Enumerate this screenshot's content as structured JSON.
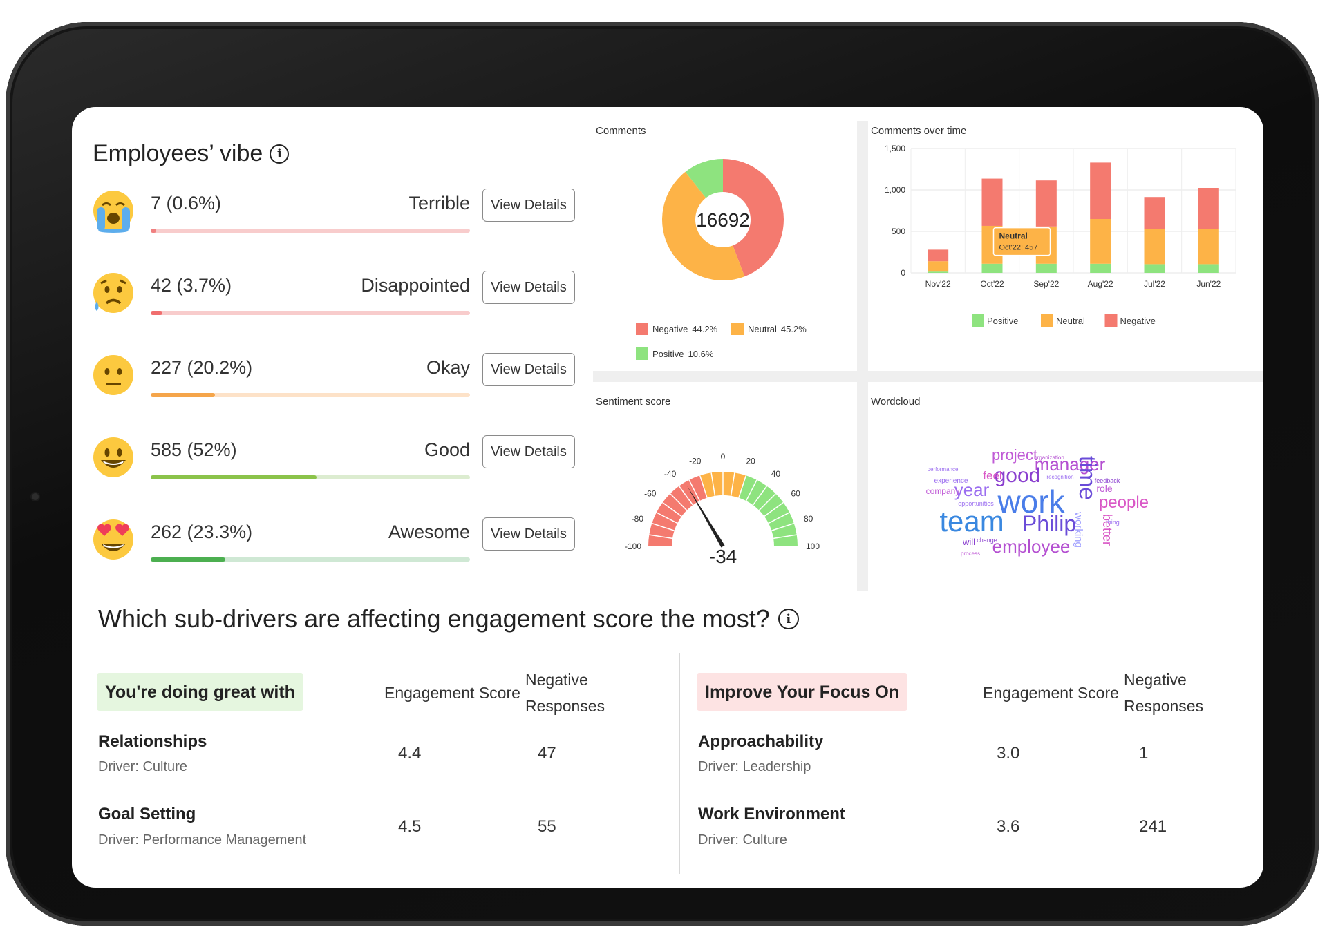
{
  "vibe": {
    "title": "Employees’ vibe",
    "rows": [
      {
        "count": "7 (0.6%)",
        "label": "Terrible",
        "button": "View Details",
        "fraction": 0.006,
        "fill": "#f08080",
        "track": "#f8cccc",
        "emoji": "crying-face"
      },
      {
        "count": "42 (3.7%)",
        "label": "Disappointed",
        "button": "View Details",
        "fraction": 0.037,
        "fill": "#f06e6e",
        "track": "#f8cccc",
        "emoji": "sad-face"
      },
      {
        "count": "227 (20.2%)",
        "label": "Okay",
        "button": "View Details",
        "fraction": 0.202,
        "fill": "#f5a54a",
        "track": "#fde2c8",
        "emoji": "neutral-face"
      },
      {
        "count": "585 (52%)",
        "label": "Good",
        "button": "View Details",
        "fraction": 0.52,
        "fill": "#8bc34a",
        "track": "#dcecd0",
        "emoji": "smiling-face"
      },
      {
        "count": "262 (23.3%)",
        "label": "Awesome",
        "button": "View Details",
        "fraction": 0.233,
        "fill": "#4caf50",
        "track": "#cfe8d4",
        "emoji": "heart-eyes-face"
      }
    ]
  },
  "comments": {
    "title": "Comments",
    "total": "16692",
    "legend": [
      {
        "label": "Negative",
        "value": "44.2%",
        "color": "#f47a6f"
      },
      {
        "label": "Neutral",
        "value": "45.2%",
        "color": "#fdb347"
      },
      {
        "label": "Positive",
        "value": "10.6%",
        "color": "#8ee37f"
      }
    ]
  },
  "chart_data": {
    "type": "bar",
    "title": "Comments over time",
    "categories": [
      "Nov'22",
      "Oct'22",
      "Sep'22",
      "Aug'22",
      "Jul'22",
      "Jun'22"
    ],
    "series": [
      {
        "name": "Positive",
        "color": "#8ee37f",
        "values": [
          15,
          110,
          110,
          110,
          105,
          105
        ]
      },
      {
        "name": "Neutral",
        "color": "#fdb347",
        "values": [
          125,
          457,
          450,
          540,
          420,
          420
        ]
      },
      {
        "name": "Negative",
        "color": "#f47a6f",
        "values": [
          140,
          570,
          555,
          680,
          390,
          500
        ]
      }
    ],
    "yticks": [
      "0",
      "500",
      "1,000",
      "1,500"
    ],
    "ylim": [
      0,
      1500
    ],
    "stacked": true,
    "legend_position": "bottom",
    "tooltip": {
      "title": "Neutral",
      "text": "Oct'22: 457"
    }
  },
  "sentiment": {
    "title": "Sentiment score",
    "value": "-34",
    "score": -34,
    "ticks": [
      "-100",
      "-80",
      "-60",
      "-40",
      "-20",
      "0",
      "20",
      "40",
      "60",
      "80",
      "100"
    ]
  },
  "wordcloud": {
    "title": "Wordcloud",
    "words": [
      "project",
      "manager",
      "good",
      "feel",
      "year",
      "work",
      "time",
      "people",
      "team",
      "Philip",
      "employee",
      "better",
      "working",
      "company",
      "experience",
      "role",
      "will",
      "performance",
      "organization",
      "feedback",
      "opportunities",
      "thing",
      "process",
      "change",
      "recognition"
    ]
  },
  "drivers": {
    "title": "Which sub-drivers are affecting engagement score the most?",
    "great": {
      "label": "You're doing great with",
      "col_score": "Engagement Score",
      "col_neg_1": "Negative",
      "col_neg_2": "Responses",
      "rows": [
        {
          "name": "Relationships",
          "driver": "Driver: Culture",
          "score": "4.4",
          "neg": "47"
        },
        {
          "name": "Goal Setting",
          "driver": "Driver: Performance Management",
          "score": "4.5",
          "neg": "55"
        }
      ]
    },
    "improve": {
      "label": "Improve Your Focus On",
      "col_score": "Engagement Score",
      "col_neg_1": "Negative",
      "col_neg_2": "Responses",
      "rows": [
        {
          "name": "Approachability",
          "driver": "Driver: Leadership",
          "score": "3.0",
          "neg": "1"
        },
        {
          "name": "Work Environment",
          "driver": "Driver: Culture",
          "score": "3.6",
          "neg": "241"
        }
      ]
    }
  }
}
